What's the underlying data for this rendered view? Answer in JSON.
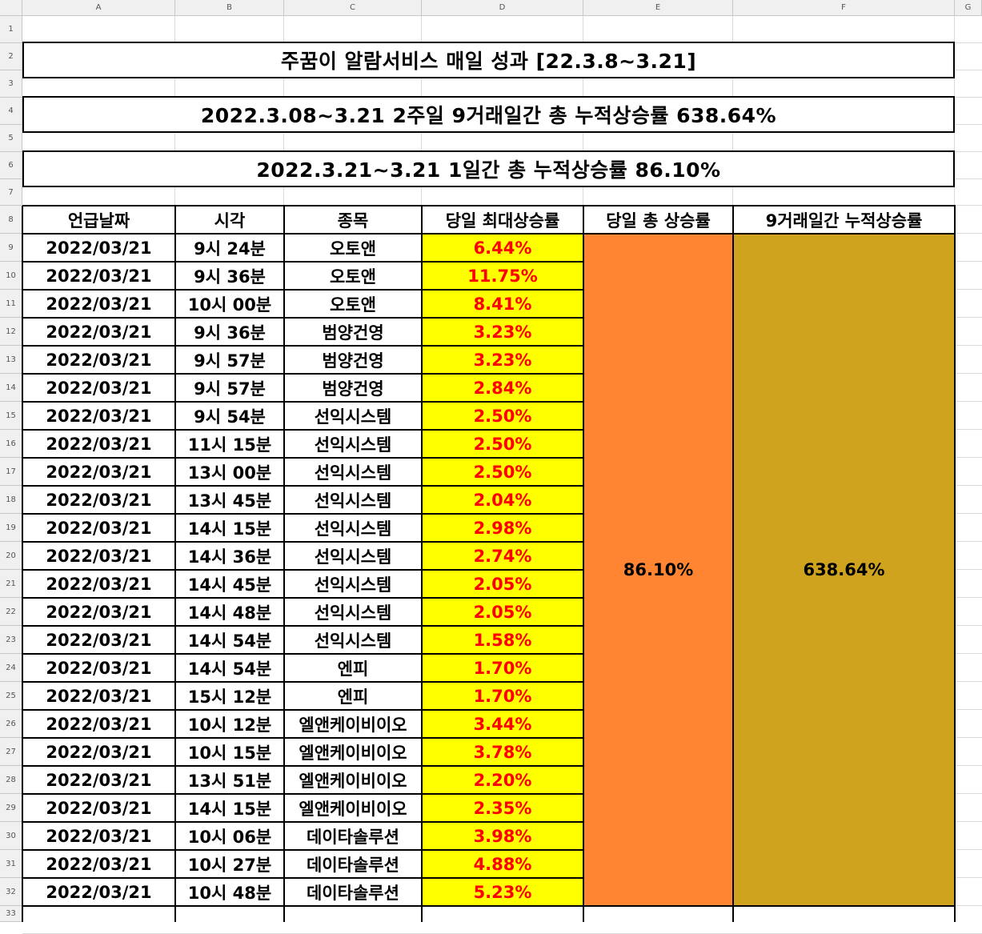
{
  "sheet": {
    "columns": [
      "A",
      "B",
      "C",
      "D",
      "E",
      "F",
      "G"
    ],
    "row_numbers": [
      "1",
      "2",
      "3",
      "4",
      "5",
      "6",
      "7",
      "8",
      "9",
      "10",
      "11",
      "12",
      "13",
      "14",
      "15",
      "16",
      "17",
      "18",
      "19",
      "20",
      "21",
      "22",
      "23",
      "24",
      "25",
      "26",
      "27",
      "28",
      "29",
      "30",
      "31",
      "32",
      "33"
    ]
  },
  "banners": {
    "title": "주꿈이 알람서비스 매일 성과 [22.3.8~3.21]",
    "summary_period": "2022.3.08~3.21 2주일 9거래일간 총 누적상승률 638.64%",
    "summary_day": "2022.3.21~3.21 1일간 총 누적상승률 86.10%"
  },
  "table": {
    "headers": [
      "언급날짜",
      "시각",
      "종목",
      "당일 최대상승률",
      "당일 총 상승률",
      "9거래일간 누적상승률"
    ],
    "rows": [
      [
        "2022/03/21",
        "9시 24분",
        "오토앤",
        "6.44%"
      ],
      [
        "2022/03/21",
        "9시 36분",
        "오토앤",
        "11.75%"
      ],
      [
        "2022/03/21",
        "10시 00분",
        "오토앤",
        "8.41%"
      ],
      [
        "2022/03/21",
        "9시 36분",
        "범양건영",
        "3.23%"
      ],
      [
        "2022/03/21",
        "9시 57분",
        "범양건영",
        "3.23%"
      ],
      [
        "2022/03/21",
        "9시 57분",
        "범양건영",
        "2.84%"
      ],
      [
        "2022/03/21",
        "9시 54분",
        "선익시스템",
        "2.50%"
      ],
      [
        "2022/03/21",
        "11시 15분",
        "선익시스템",
        "2.50%"
      ],
      [
        "2022/03/21",
        "13시 00분",
        "선익시스템",
        "2.50%"
      ],
      [
        "2022/03/21",
        "13시 45분",
        "선익시스템",
        "2.04%"
      ],
      [
        "2022/03/21",
        "14시 15분",
        "선익시스템",
        "2.98%"
      ],
      [
        "2022/03/21",
        "14시 36분",
        "선익시스템",
        "2.74%"
      ],
      [
        "2022/03/21",
        "14시 45분",
        "선익시스템",
        "2.05%"
      ],
      [
        "2022/03/21",
        "14시 48분",
        "선익시스템",
        "2.05%"
      ],
      [
        "2022/03/21",
        "14시 54분",
        "선익시스템",
        "1.58%"
      ],
      [
        "2022/03/21",
        "14시 54분",
        "엔피",
        "1.70%"
      ],
      [
        "2022/03/21",
        "15시 12분",
        "엔피",
        "1.70%"
      ],
      [
        "2022/03/21",
        "10시 12분",
        "엘앤케이비이오",
        "3.44%"
      ],
      [
        "2022/03/21",
        "10시 15분",
        "엘앤케이비이오",
        "3.78%"
      ],
      [
        "2022/03/21",
        "13시 51분",
        "엘앤케이비이오",
        "2.20%"
      ],
      [
        "2022/03/21",
        "14시 15분",
        "엘앤케이비이오",
        "2.35%"
      ],
      [
        "2022/03/21",
        "10시 06분",
        "데이타솔루션",
        "3.98%"
      ],
      [
        "2022/03/21",
        "10시 27분",
        "데이타솔루션",
        "4.88%"
      ],
      [
        "2022/03/21",
        "10시 48분",
        "데이타솔루션",
        "5.23%"
      ]
    ],
    "day_total": "86.10%",
    "cumulative_total": "638.64%"
  },
  "colors": {
    "max_rise_fill": "#ffff00",
    "max_rise_text": "#ff0000",
    "day_total_fill": "#ff8533",
    "cumulative_fill": "#d0a31e"
  }
}
